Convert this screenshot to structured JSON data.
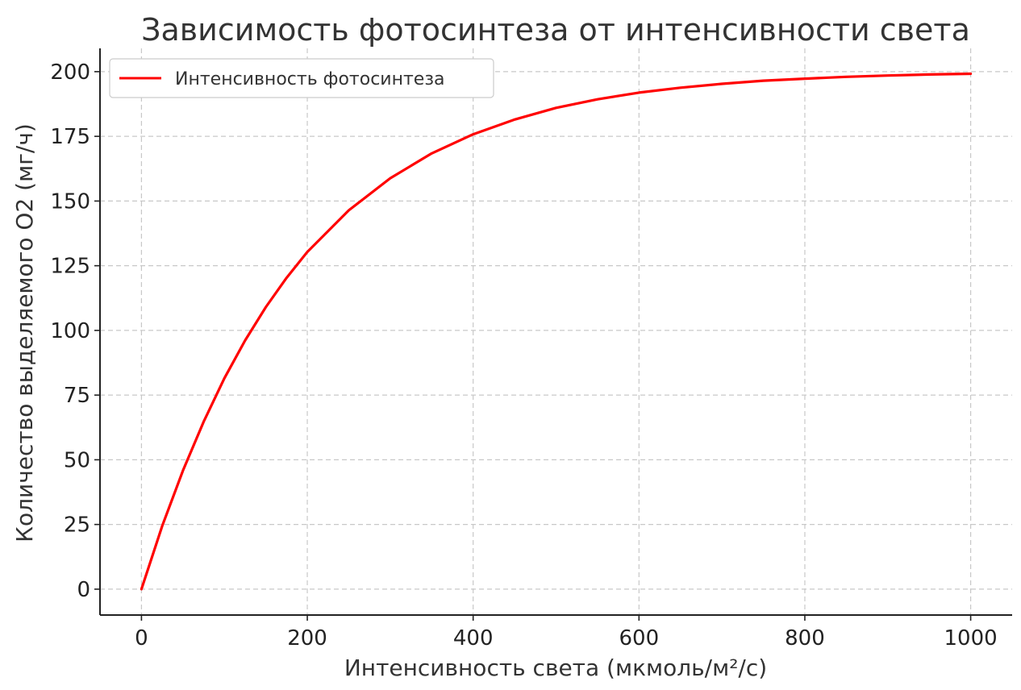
{
  "chart_data": {
    "type": "line",
    "title": "Зависимость фотосинтеза от интенсивности света",
    "xlabel": "Интенсивность света (мкмоль/м²/с)",
    "ylabel": "Количество выделяемого О2 (мг/ч)",
    "xlim": [
      -50,
      1050
    ],
    "ylim": [
      -10,
      209
    ],
    "xticks": [
      0,
      200,
      400,
      600,
      800,
      1000
    ],
    "yticks": [
      0,
      25,
      50,
      75,
      100,
      125,
      150,
      175,
      200
    ],
    "grid": true,
    "legend_position": "top-left",
    "series": [
      {
        "name": "Интенсивность фотосинтеза",
        "color": "#ff0000",
        "x": [
          0,
          25,
          50,
          75,
          100,
          125,
          150,
          175,
          200,
          250,
          300,
          350,
          400,
          450,
          500,
          550,
          600,
          650,
          700,
          750,
          800,
          850,
          900,
          950,
          1000
        ],
        "y": [
          0,
          24.4,
          45.8,
          64.7,
          81.5,
          96.1,
          109.0,
          120.3,
          130.3,
          146.4,
          158.8,
          168.4,
          175.8,
          181.5,
          186.0,
          189.3,
          191.9,
          193.8,
          195.3,
          196.5,
          197.3,
          198.0,
          198.5,
          198.9,
          199.2
        ]
      }
    ]
  }
}
